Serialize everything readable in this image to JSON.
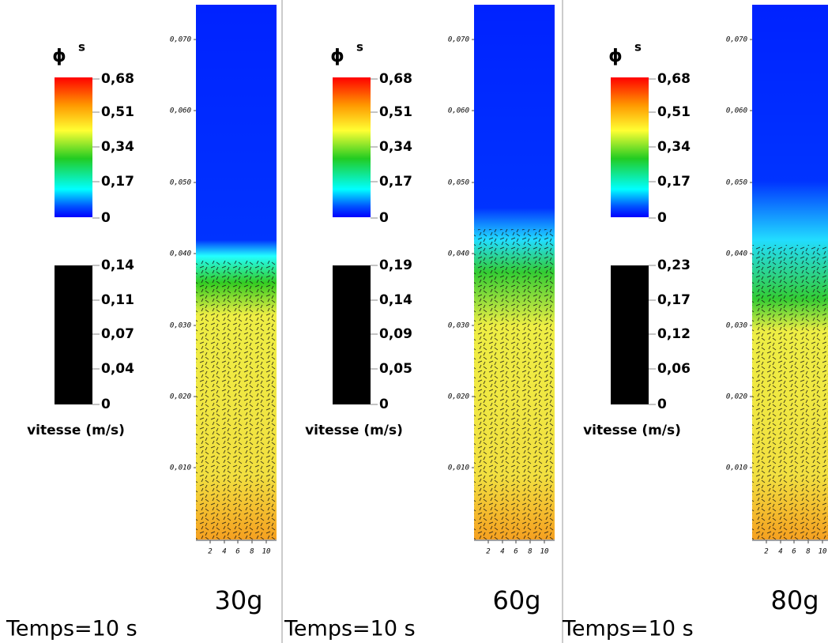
{
  "panels": [
    {
      "phi_symbol": "ϕ",
      "phi_superscript": "s",
      "phi_ticks": [
        "0,68",
        "0,51",
        "0,34",
        "0,17",
        "0"
      ],
      "velocity_ticks": [
        "0,14",
        "0,11",
        "0,07",
        "0,04",
        "0"
      ],
      "velocity_label": "vitesse (m/s)",
      "y_ticks": [
        "0,070",
        "0,060",
        "0,050",
        "0,040",
        "0,030",
        "0,020",
        "0,010"
      ],
      "x_ticks": [
        "2",
        "4",
        "6",
        "8",
        "10"
      ],
      "gravity": "30g",
      "time": "Temps=10 s"
    },
    {
      "phi_symbol": "ϕ",
      "phi_superscript": "s",
      "phi_ticks": [
        "0,68",
        "0,51",
        "0,34",
        "0,17",
        "0"
      ],
      "velocity_ticks": [
        "0,19",
        "0,14",
        "0,09",
        "0,05",
        "0"
      ],
      "velocity_label": "vitesse (m/s)",
      "y_ticks": [
        "0,070",
        "0,060",
        "0,050",
        "0,040",
        "0,030",
        "0,020",
        "0,010"
      ],
      "x_ticks": [
        "2",
        "4",
        "6",
        "8",
        "10"
      ],
      "gravity": "60g",
      "time": "Temps=10 s"
    },
    {
      "phi_symbol": "ϕ",
      "phi_superscript": "s",
      "phi_ticks": [
        "0,68",
        "0,51",
        "0,34",
        "0,17",
        "0"
      ],
      "velocity_ticks": [
        "0,23",
        "0,17",
        "0,12",
        "0,06",
        "0"
      ],
      "velocity_label": "vitesse (m/s)",
      "y_ticks": [
        "0,070",
        "0,060",
        "0,050",
        "0,040",
        "0,030",
        "0,020",
        "0,010"
      ],
      "x_ticks": [
        "2",
        "4",
        "6",
        "8",
        "10"
      ],
      "gravity": "80g",
      "time": "Temps=10 s"
    }
  ]
}
